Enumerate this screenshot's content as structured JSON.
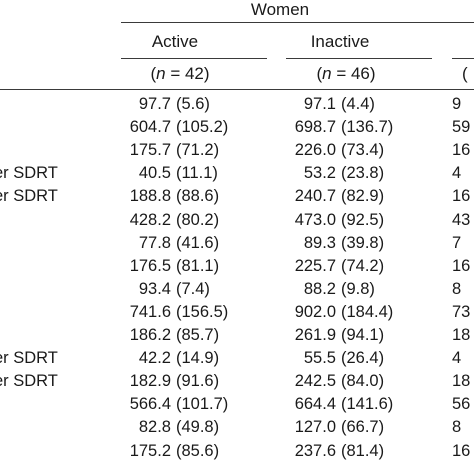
{
  "header": {
    "group": "Women",
    "columns": [
      {
        "label": "Active",
        "n_prefix": "(",
        "n_var": "n",
        "n_eq": " = 42)"
      },
      {
        "label": "Inactive",
        "n_prefix": "(",
        "n_var": "n",
        "n_eq": " = 46)"
      }
    ],
    "clipped_cells": [
      "",
      "("
    ]
  },
  "row_labels": [
    "",
    "",
    "",
    "er SDRT",
    "er SDRT",
    "",
    "",
    "",
    "",
    "",
    "",
    "er SDRT",
    "er SDRT",
    "",
    "",
    ""
  ],
  "rows": [
    {
      "active_mean": "97.7",
      "active_sd": "(5.6)",
      "inactive_mean": "97.1",
      "inactive_sd": "(4.4)",
      "clip": "9"
    },
    {
      "active_mean": "604.7",
      "active_sd": "(105.2)",
      "inactive_mean": "698.7",
      "inactive_sd": "(136.7)",
      "clip": "59"
    },
    {
      "active_mean": "175.7",
      "active_sd": "(71.2)",
      "inactive_mean": "226.0",
      "inactive_sd": "(73.4)",
      "clip": "16"
    },
    {
      "active_mean": "40.5",
      "active_sd": "(11.1)",
      "inactive_mean": "53.2",
      "inactive_sd": "(23.8)",
      "clip": "4"
    },
    {
      "active_mean": "188.8",
      "active_sd": "(88.6)",
      "inactive_mean": "240.7",
      "inactive_sd": "(82.9)",
      "clip": "16"
    },
    {
      "active_mean": "428.2",
      "active_sd": "(80.2)",
      "inactive_mean": "473.0",
      "inactive_sd": "(92.5)",
      "clip": "43"
    },
    {
      "active_mean": "77.8",
      "active_sd": "(41.6)",
      "inactive_mean": "89.3",
      "inactive_sd": "(39.8)",
      "clip": "7"
    },
    {
      "active_mean": "176.5",
      "active_sd": "(81.1)",
      "inactive_mean": "225.7",
      "inactive_sd": "(74.2)",
      "clip": "16"
    },
    {
      "active_mean": "93.4",
      "active_sd": "(7.4)",
      "inactive_mean": "88.2",
      "inactive_sd": "(9.8)",
      "clip": "8"
    },
    {
      "active_mean": "741.6",
      "active_sd": "(156.5)",
      "inactive_mean": "902.0",
      "inactive_sd": "(184.4)",
      "clip": "73"
    },
    {
      "active_mean": "186.2",
      "active_sd": "(85.7)",
      "inactive_mean": "261.9",
      "inactive_sd": "(94.1)",
      "clip": "18"
    },
    {
      "active_mean": "42.2",
      "active_sd": "(14.9)",
      "inactive_mean": "55.5",
      "inactive_sd": "(26.4)",
      "clip": "4"
    },
    {
      "active_mean": "182.9",
      "active_sd": "(91.6)",
      "inactive_mean": "242.5",
      "inactive_sd": "(84.0)",
      "clip": "18"
    },
    {
      "active_mean": "566.4",
      "active_sd": "(101.7)",
      "inactive_mean": "664.4",
      "inactive_sd": "(141.6)",
      "clip": "56"
    },
    {
      "active_mean": "82.8",
      "active_sd": "(49.8)",
      "inactive_mean": "127.0",
      "inactive_sd": "(66.7)",
      "clip": "8"
    },
    {
      "active_mean": "175.2",
      "active_sd": "(85.6)",
      "inactive_mean": "237.6",
      "inactive_sd": "(81.4)",
      "clip": "16"
    }
  ]
}
